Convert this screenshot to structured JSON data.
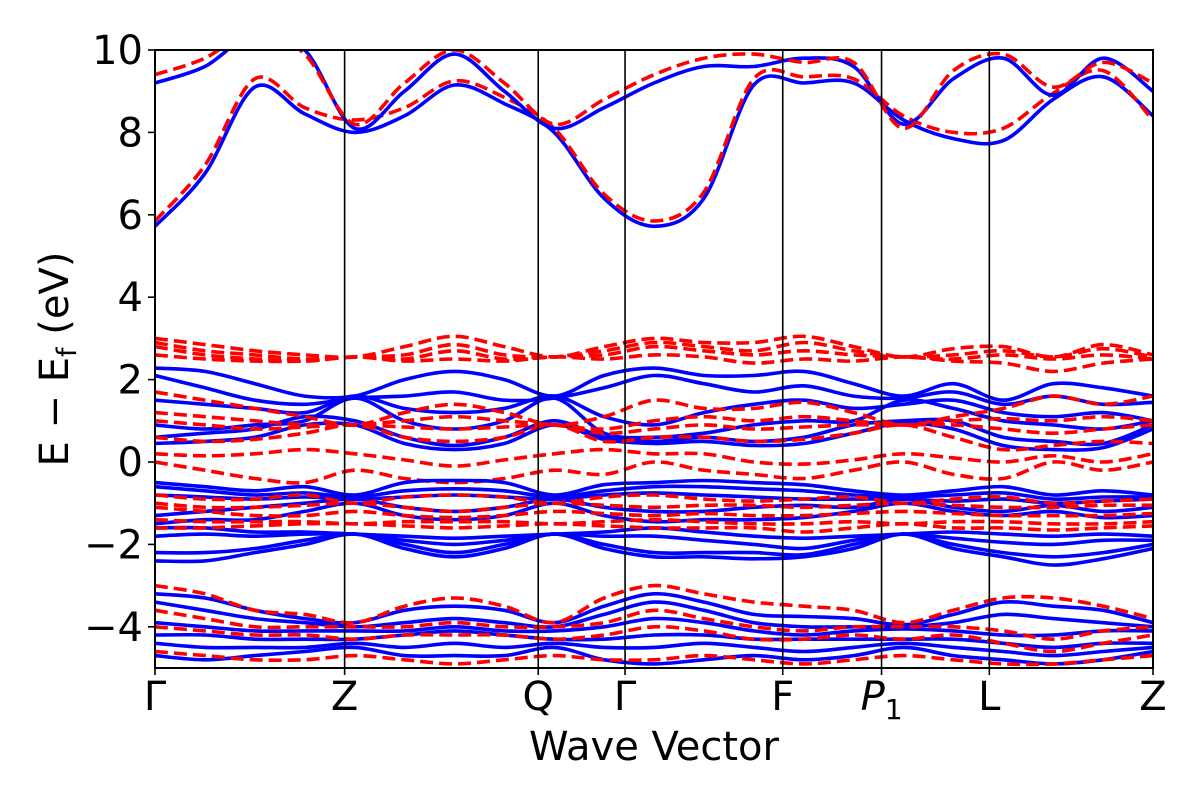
{
  "chart_data": {
    "type": "line",
    "title": "",
    "xlabel": "Wave Vector",
    "ylabel": "E − E_f (eV)",
    "ylabel_parts": {
      "main": "E  −  E",
      "sub": "f",
      "unit": " (eV)"
    },
    "ylim": [
      -5,
      10
    ],
    "yticks": [
      10,
      8,
      6,
      4,
      2,
      0,
      -2,
      -4
    ],
    "ytick_labels": [
      "10",
      "8",
      "6",
      "4",
      "2",
      "0",
      "−2",
      "−4"
    ],
    "grid": false,
    "legend": "none",
    "kpath": [
      {
        "label": "Γ",
        "x": 0.0
      },
      {
        "label": "Z",
        "x": 0.19
      },
      {
        "label": "Q",
        "x": 0.384
      },
      {
        "label": "Γ",
        "x": 0.471
      },
      {
        "label": "F",
        "x": 0.629
      },
      {
        "label": "P",
        "sub": "1",
        "italic": true,
        "x": 0.728
      },
      {
        "label": "L",
        "x": 0.836
      },
      {
        "label": "Z",
        "x": 1.0
      }
    ],
    "series_styles": [
      {
        "color": "#0000ff",
        "dash": "solid"
      },
      {
        "color": "#ff0000",
        "dash": "dashed"
      }
    ],
    "series": [
      {
        "style": 0,
        "values": [
          5.72,
          7.0,
          9.1,
          8.45,
          8.0,
          8.4,
          9.15,
          8.7,
          8.0,
          6.4,
          5.72,
          6.4,
          9.15,
          9.2,
          9.2,
          8.3,
          7.85,
          7.8,
          8.8,
          9.35,
          8.4
        ]
      },
      {
        "style": 1,
        "values": [
          5.85,
          7.2,
          9.3,
          8.6,
          8.3,
          8.6,
          9.25,
          8.85,
          8.1,
          6.5,
          5.85,
          6.55,
          9.3,
          9.35,
          9.3,
          8.4,
          8.0,
          8.1,
          8.95,
          9.5,
          8.3
        ]
      },
      {
        "style": 0,
        "values": [
          9.2,
          9.6,
          10.4,
          10.0,
          8.1,
          9.0,
          9.9,
          9.0,
          8.1,
          8.6,
          9.2,
          9.6,
          9.6,
          9.8,
          9.6,
          8.2,
          9.3,
          9.8,
          8.9,
          9.8,
          9.0
        ]
      },
      {
        "style": 1,
        "values": [
          9.4,
          9.8,
          10.5,
          9.9,
          8.2,
          9.2,
          10.0,
          9.2,
          8.2,
          8.8,
          9.4,
          9.8,
          9.9,
          9.7,
          9.7,
          8.1,
          9.5,
          9.9,
          9.1,
          9.7,
          9.2
        ]
      },
      {
        "style": 0,
        "values": [
          2.28,
          2.2,
          1.9,
          1.6,
          1.6,
          2.0,
          2.2,
          2.0,
          1.6,
          2.1,
          2.28,
          2.1,
          2.1,
          2.2,
          1.9,
          1.6,
          1.9,
          1.5,
          1.9,
          1.8,
          1.6
        ]
      },
      {
        "style": 0,
        "values": [
          2.1,
          1.8,
          1.5,
          1.4,
          1.55,
          1.6,
          1.7,
          1.5,
          1.55,
          1.8,
          2.1,
          1.9,
          1.7,
          1.85,
          1.6,
          1.55,
          1.7,
          1.4,
          1.6,
          1.4,
          1.45
        ]
      },
      {
        "style": 0,
        "values": [
          1.5,
          1.4,
          1.3,
          1.2,
          1.6,
          1.3,
          1.2,
          1.3,
          1.6,
          1.1,
          0.9,
          1.2,
          1.4,
          1.5,
          1.3,
          1.4,
          1.5,
          1.2,
          1.1,
          1.2,
          1.0
        ]
      },
      {
        "style": 0,
        "values": [
          0.9,
          0.8,
          0.9,
          1.0,
          1.55,
          1.0,
          0.8,
          1.0,
          1.55,
          0.7,
          0.6,
          0.7,
          0.9,
          1.0,
          1.0,
          1.5,
          1.3,
          1.0,
          0.9,
          0.8,
          1.0
        ]
      },
      {
        "style": 0,
        "values": [
          0.6,
          0.7,
          0.8,
          1.1,
          1.0,
          0.6,
          0.4,
          0.6,
          1.0,
          0.6,
          0.5,
          0.6,
          0.5,
          0.6,
          0.9,
          1.0,
          1.0,
          0.6,
          0.5,
          0.45,
          0.9
        ]
      },
      {
        "style": 0,
        "values": [
          0.45,
          0.5,
          0.6,
          0.9,
          0.9,
          0.45,
          0.3,
          0.45,
          0.9,
          0.55,
          0.45,
          0.5,
          0.4,
          0.45,
          0.7,
          0.95,
          0.8,
          0.4,
          0.3,
          0.35,
          0.8
        ]
      },
      {
        "style": 1,
        "values": [
          3.0,
          2.85,
          2.7,
          2.6,
          2.55,
          2.8,
          3.05,
          2.8,
          2.55,
          2.8,
          3.0,
          2.9,
          2.9,
          3.05,
          2.8,
          2.55,
          2.75,
          2.8,
          2.55,
          2.85,
          2.6
        ]
      },
      {
        "style": 1,
        "values": [
          2.9,
          2.7,
          2.6,
          2.5,
          2.55,
          2.6,
          2.85,
          2.6,
          2.55,
          2.7,
          2.9,
          2.8,
          2.7,
          2.9,
          2.7,
          2.55,
          2.6,
          2.7,
          2.55,
          2.75,
          2.55
        ]
      },
      {
        "style": 1,
        "values": [
          2.8,
          2.6,
          2.5,
          2.45,
          2.55,
          2.5,
          2.7,
          2.5,
          2.55,
          2.6,
          2.8,
          2.7,
          2.6,
          2.7,
          2.6,
          2.55,
          2.5,
          2.6,
          2.5,
          2.6,
          2.5
        ]
      },
      {
        "style": 1,
        "values": [
          2.6,
          2.5,
          2.45,
          2.45,
          2.55,
          2.45,
          2.5,
          2.45,
          2.55,
          2.5,
          2.6,
          2.55,
          2.4,
          2.5,
          2.45,
          2.55,
          2.45,
          2.4,
          2.2,
          2.4,
          2.5
        ]
      },
      {
        "style": 1,
        "values": [
          1.7,
          1.5,
          1.3,
          1.1,
          0.9,
          1.2,
          1.4,
          1.2,
          0.9,
          1.1,
          1.5,
          1.3,
          1.3,
          1.45,
          1.2,
          0.9,
          1.1,
          1.3,
          1.6,
          1.4,
          1.6
        ]
      },
      {
        "style": 1,
        "values": [
          1.2,
          1.1,
          1.0,
          0.9,
          0.9,
          1.0,
          1.1,
          1.0,
          0.9,
          0.8,
          1.0,
          1.1,
          1.0,
          1.1,
          1.0,
          0.9,
          1.0,
          1.05,
          1.0,
          1.1,
          1.0
        ]
      },
      {
        "style": 1,
        "values": [
          1.0,
          0.9,
          0.8,
          0.85,
          0.9,
          0.85,
          0.8,
          0.85,
          0.9,
          0.7,
          0.8,
          0.9,
          0.8,
          0.85,
          0.9,
          0.9,
          0.9,
          0.8,
          0.7,
          0.8,
          0.9
        ]
      },
      {
        "style": 1,
        "values": [
          0.6,
          0.5,
          0.55,
          0.7,
          0.9,
          0.6,
          0.5,
          0.6,
          0.9,
          0.5,
          0.6,
          0.6,
          0.5,
          0.55,
          0.7,
          0.9,
          0.6,
          0.3,
          0.4,
          0.5,
          0.45
        ]
      },
      {
        "style": 1,
        "values": [
          0.2,
          0.15,
          0.2,
          0.3,
          0.2,
          0.05,
          -0.1,
          0.05,
          0.2,
          0.3,
          0.2,
          0.2,
          0.0,
          -0.05,
          0.05,
          0.2,
          0.1,
          0.0,
          0.15,
          0.0,
          0.2
        ]
      },
      {
        "style": 1,
        "values": [
          0.0,
          -0.2,
          -0.4,
          -0.5,
          -0.2,
          -0.4,
          -0.5,
          -0.4,
          -0.2,
          -0.3,
          0.0,
          -0.2,
          -0.3,
          -0.4,
          -0.2,
          0.0,
          -0.3,
          -0.4,
          0.0,
          -0.2,
          0.0
        ]
      },
      {
        "style": 0,
        "values": [
          -0.5,
          -0.6,
          -0.7,
          -0.6,
          -0.8,
          -0.5,
          -0.45,
          -0.5,
          -0.8,
          -0.55,
          -0.5,
          -0.45,
          -0.5,
          -0.55,
          -0.7,
          -0.8,
          -0.7,
          -0.6,
          -0.8,
          -0.7,
          -0.8
        ]
      },
      {
        "style": 0,
        "values": [
          -0.6,
          -0.7,
          -0.8,
          -0.75,
          -0.85,
          -0.7,
          -0.65,
          -0.7,
          -0.85,
          -0.7,
          -0.6,
          -0.6,
          -0.65,
          -0.7,
          -0.8,
          -0.85,
          -0.8,
          -0.75,
          -0.9,
          -0.85,
          -0.85
        ]
      },
      {
        "style": 0,
        "values": [
          -0.8,
          -0.85,
          -0.9,
          -0.85,
          -0.9,
          -0.85,
          -0.8,
          -0.85,
          -0.9,
          -0.8,
          -0.75,
          -0.8,
          -0.85,
          -0.9,
          -0.9,
          -0.9,
          -0.95,
          -0.9,
          -1.0,
          -0.95,
          -0.9
        ]
      },
      {
        "style": 0,
        "values": [
          -1.3,
          -1.2,
          -1.1,
          -1.0,
          -0.9,
          -1.1,
          -1.2,
          -1.1,
          -0.9,
          -1.1,
          -1.2,
          -1.2,
          -1.1,
          -1.05,
          -1.1,
          -0.9,
          -1.1,
          -1.2,
          -1.05,
          -1.2,
          -1.1
        ]
      },
      {
        "style": 0,
        "values": [
          -1.5,
          -1.4,
          -1.4,
          -1.2,
          -1.0,
          -1.3,
          -1.4,
          -1.3,
          -1.0,
          -1.3,
          -1.45,
          -1.4,
          -1.4,
          -1.35,
          -1.2,
          -1.0,
          -1.2,
          -1.3,
          -1.2,
          -1.35,
          -1.3
        ]
      },
      {
        "style": 0,
        "values": [
          -1.6,
          -1.6,
          -1.7,
          -1.7,
          -1.75,
          -1.8,
          -1.85,
          -1.8,
          -1.75,
          -1.7,
          -1.6,
          -1.7,
          -1.8,
          -1.85,
          -1.8,
          -1.75,
          -1.7,
          -1.75,
          -1.8,
          -1.75,
          -1.8
        ]
      },
      {
        "style": 0,
        "values": [
          -1.8,
          -1.75,
          -1.8,
          -1.75,
          -1.75,
          -1.9,
          -2.0,
          -1.9,
          -1.75,
          -1.8,
          -1.8,
          -1.9,
          -2.0,
          -2.1,
          -1.9,
          -1.75,
          -1.85,
          -1.95,
          -2.0,
          -1.9,
          -1.9
        ]
      },
      {
        "style": 0,
        "values": [
          -2.2,
          -2.2,
          -2.1,
          -1.9,
          -1.75,
          -2.0,
          -2.2,
          -2.0,
          -1.75,
          -2.0,
          -2.2,
          -2.2,
          -2.2,
          -2.25,
          -2.0,
          -1.75,
          -2.0,
          -2.2,
          -2.3,
          -2.2,
          -2.0
        ]
      },
      {
        "style": 0,
        "values": [
          -2.4,
          -2.4,
          -2.2,
          -2.0,
          -1.75,
          -2.1,
          -2.3,
          -2.1,
          -1.75,
          -2.1,
          -2.3,
          -2.3,
          -2.35,
          -2.3,
          -2.1,
          -1.75,
          -2.1,
          -2.3,
          -2.5,
          -2.35,
          -2.1
        ]
      },
      {
        "style": 1,
        "values": [
          -0.8,
          -0.9,
          -0.9,
          -0.8,
          -1.0,
          -0.85,
          -0.8,
          -0.85,
          -1.0,
          -0.85,
          -0.8,
          -0.9,
          -0.95,
          -0.9,
          -0.85,
          -1.0,
          -0.9,
          -0.85,
          -1.0,
          -0.95,
          -0.9
        ]
      },
      {
        "style": 1,
        "values": [
          -1.0,
          -1.1,
          -1.1,
          -1.05,
          -1.0,
          -1.1,
          -1.2,
          -1.1,
          -1.0,
          -1.05,
          -1.1,
          -1.05,
          -1.05,
          -1.1,
          -1.05,
          -1.0,
          -1.05,
          -1.1,
          -1.1,
          -1.05,
          -1.05
        ]
      },
      {
        "style": 1,
        "values": [
          -1.1,
          -1.2,
          -1.3,
          -1.3,
          -1.2,
          -1.3,
          -1.35,
          -1.3,
          -1.2,
          -1.25,
          -1.3,
          -1.25,
          -1.3,
          -1.3,
          -1.25,
          -1.2,
          -1.25,
          -1.3,
          -1.3,
          -1.3,
          -1.25
        ]
      },
      {
        "style": 1,
        "values": [
          -1.4,
          -1.45,
          -1.45,
          -1.45,
          -1.5,
          -1.45,
          -1.45,
          -1.45,
          -1.5,
          -1.45,
          -1.4,
          -1.45,
          -1.5,
          -1.5,
          -1.45,
          -1.5,
          -1.45,
          -1.45,
          -1.5,
          -1.5,
          -1.45
        ]
      },
      {
        "style": 1,
        "values": [
          -1.6,
          -1.6,
          -1.55,
          -1.5,
          -1.5,
          -1.55,
          -1.6,
          -1.55,
          -1.5,
          -1.55,
          -1.6,
          -1.6,
          -1.6,
          -1.7,
          -1.6,
          -1.5,
          -1.6,
          -1.6,
          -1.65,
          -1.6,
          -1.55
        ]
      },
      {
        "style": 0,
        "values": [
          -3.2,
          -3.3,
          -3.6,
          -3.8,
          -3.9,
          -3.6,
          -3.5,
          -3.6,
          -3.9,
          -3.5,
          -3.2,
          -3.4,
          -3.7,
          -3.75,
          -3.8,
          -3.95,
          -3.7,
          -3.4,
          -3.5,
          -3.6,
          -3.9
        ]
      },
      {
        "style": 0,
        "values": [
          -3.4,
          -3.6,
          -3.8,
          -3.9,
          -4.0,
          -3.9,
          -3.8,
          -3.9,
          -4.0,
          -3.7,
          -3.4,
          -3.6,
          -3.9,
          -4.0,
          -4.0,
          -4.0,
          -3.9,
          -3.7,
          -3.8,
          -3.9,
          -4.0
        ]
      },
      {
        "style": 0,
        "values": [
          -3.9,
          -4.0,
          -4.1,
          -4.1,
          -4.1,
          -4.1,
          -4.0,
          -4.1,
          -4.1,
          -4.0,
          -3.8,
          -3.9,
          -4.1,
          -4.2,
          -4.1,
          -4.05,
          -4.1,
          -4.2,
          -4.2,
          -4.1,
          -4.1
        ]
      },
      {
        "style": 0,
        "values": [
          -4.2,
          -4.2,
          -4.3,
          -4.3,
          -4.3,
          -4.2,
          -4.1,
          -4.2,
          -4.3,
          -4.3,
          -4.2,
          -4.2,
          -4.3,
          -4.3,
          -4.3,
          -4.3,
          -4.3,
          -4.4,
          -4.5,
          -4.4,
          -4.4
        ]
      },
      {
        "style": 0,
        "values": [
          -4.4,
          -4.5,
          -4.5,
          -4.5,
          -4.4,
          -4.5,
          -4.4,
          -4.5,
          -4.4,
          -4.5,
          -4.5,
          -4.4,
          -4.5,
          -4.6,
          -4.5,
          -4.4,
          -4.5,
          -4.6,
          -4.7,
          -4.6,
          -4.5
        ]
      },
      {
        "style": 0,
        "values": [
          -4.7,
          -4.8,
          -4.7,
          -4.6,
          -4.5,
          -4.7,
          -4.7,
          -4.7,
          -4.5,
          -4.8,
          -4.9,
          -4.8,
          -4.7,
          -4.8,
          -4.7,
          -4.5,
          -4.7,
          -4.8,
          -4.9,
          -4.8,
          -4.6
        ]
      },
      {
        "style": 1,
        "values": [
          -3.0,
          -3.2,
          -3.6,
          -3.7,
          -3.9,
          -3.5,
          -3.3,
          -3.5,
          -3.9,
          -3.3,
          -3.0,
          -3.2,
          -3.4,
          -3.5,
          -3.6,
          -3.9,
          -3.6,
          -3.3,
          -3.3,
          -3.5,
          -3.8
        ]
      },
      {
        "style": 1,
        "values": [
          -3.6,
          -3.8,
          -4.0,
          -4.0,
          -4.0,
          -4.0,
          -3.9,
          -4.0,
          -4.0,
          -3.9,
          -3.6,
          -3.8,
          -4.0,
          -4.1,
          -4.0,
          -4.0,
          -4.0,
          -4.1,
          -4.3,
          -4.1,
          -4.0
        ]
      },
      {
        "style": 1,
        "values": [
          -4.0,
          -4.1,
          -4.2,
          -4.2,
          -4.3,
          -4.2,
          -4.2,
          -4.2,
          -4.3,
          -4.2,
          -4.0,
          -4.1,
          -4.3,
          -4.3,
          -4.2,
          -4.3,
          -4.2,
          -4.4,
          -4.6,
          -4.4,
          -4.2
        ]
      },
      {
        "style": 1,
        "values": [
          -4.6,
          -4.7,
          -4.8,
          -4.8,
          -4.7,
          -4.8,
          -4.9,
          -4.8,
          -4.7,
          -4.8,
          -4.8,
          -4.7,
          -4.8,
          -4.9,
          -4.8,
          -4.7,
          -4.8,
          -4.9,
          -4.9,
          -4.8,
          -4.7
        ]
      }
    ]
  }
}
